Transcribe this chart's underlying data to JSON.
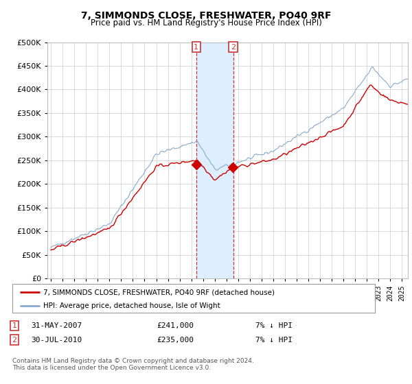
{
  "title": "7, SIMMONDS CLOSE, FRESHWATER, PO40 9RF",
  "subtitle": "Price paid vs. HM Land Registry's House Price Index (HPI)",
  "ylim": [
    0,
    500000
  ],
  "sale1_x": 2007.42,
  "sale2_x": 2010.58,
  "sale1_price": 241000,
  "sale2_price": 235000,
  "legend_line1": "7, SIMMONDS CLOSE, FRESHWATER, PO40 9RF (detached house)",
  "legend_line2": "HPI: Average price, detached house, Isle of Wight",
  "line_color_red": "#cc0000",
  "line_color_blue": "#88aacc",
  "shade_color": "#ddeeff",
  "marker_box_color": "#cc3333",
  "grid_color": "#cccccc",
  "bg_color": "#ffffff",
  "chart_bg": "#f8f8f8",
  "footer": "Contains HM Land Registry data © Crown copyright and database right 2024.\nThis data is licensed under the Open Government Licence v3.0."
}
